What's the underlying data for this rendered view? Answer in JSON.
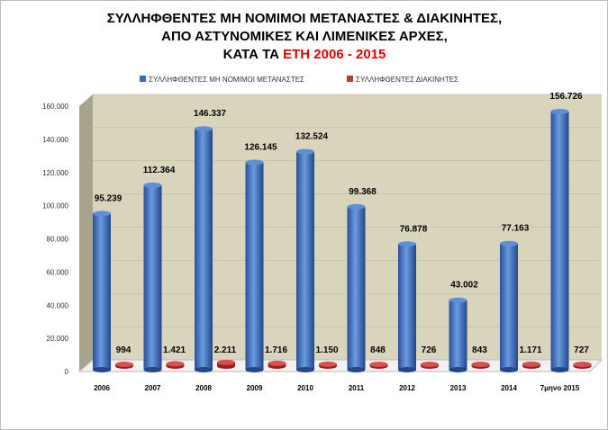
{
  "chart_data": {
    "type": "bar",
    "title_line1": "ΣΥΛΛΗΦΘΕΝΤΕΣ ΜΗ ΝΟΜΙΜΟΙ ΜΕΤΑΝΑΣΤΕΣ & ΔΙΑΚΙΝΗΤΕΣ,",
    "title_line2": "ΑΠΟ ΑΣΤΥΝΟΜΙΚΕΣ ΚΑΙ ΛΙΜΕΝΙΚΕΣ ΑΡΧΕΣ,",
    "title_line3_prefix": "ΚΑΤΑ ΤΑ ",
    "title_line3_highlight": "ΕΤΗ 2006 - 2015",
    "categories": [
      "2006",
      "2007",
      "2008",
      "2009",
      "2010",
      "2011",
      "2012",
      "2013",
      "2014",
      "7μηνο 2015"
    ],
    "series": [
      {
        "name": "ΣΥΛΛΗΦΘΕΝΤΕΣ ΜΗ ΝΟΜΙΜΟΙ ΜΕΤΑΝΑΣΤΕΣ",
        "color": "#3a6bc0",
        "values": [
          95239,
          112364,
          146337,
          126145,
          132524,
          99368,
          76878,
          43002,
          77163,
          156726
        ],
        "labels": [
          "95.239",
          "112.364",
          "146.337",
          "126.145",
          "132.524",
          "99.368",
          "76.878",
          "43.002",
          "77.163",
          "156.726"
        ]
      },
      {
        "name": "ΣΥΛΛΗΦΘΕΝΤΕΣ ΔΙΑΚΙΝΗΤΕΣ",
        "color": "#c0392b",
        "values": [
          994,
          1421,
          2211,
          1716,
          1150,
          848,
          726,
          843,
          1171,
          727
        ],
        "labels": [
          "994",
          "1.421",
          "2.211",
          "1.716",
          "1.150",
          "848",
          "726",
          "843",
          "1.171",
          "727"
        ]
      }
    ],
    "yticks": [
      "0",
      "20.000",
      "40.000",
      "60.000",
      "80.000",
      "100.000",
      "120.000",
      "140.000",
      "160.000"
    ],
    "ylim": [
      0,
      160000
    ],
    "legend_position": "top",
    "highlight_color": "#e00000"
  }
}
